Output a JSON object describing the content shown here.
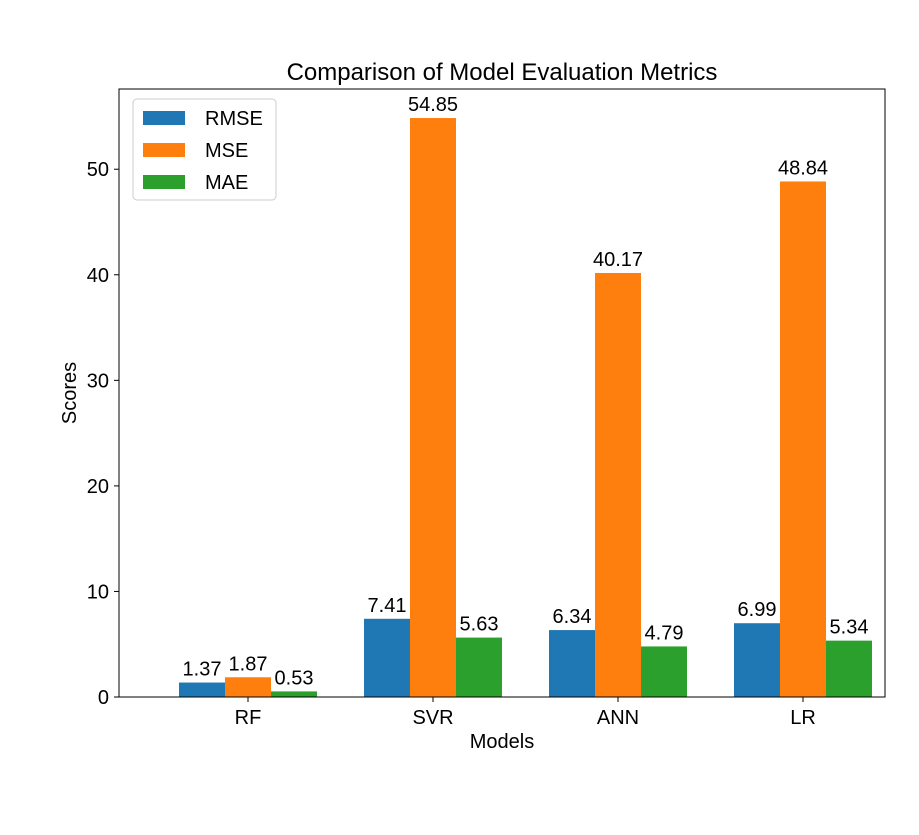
{
  "chart_data": {
    "type": "bar",
    "title": "Comparison of Model Evaluation Metrics",
    "xlabel": "Models",
    "ylabel": "Scores",
    "categories": [
      "RF",
      "SVR",
      "ANN",
      "LR"
    ],
    "series": [
      {
        "name": "RMSE",
        "color": "#1f77b4",
        "values": [
          1.37,
          7.41,
          6.34,
          6.99
        ],
        "labels": [
          "1.37",
          "7.41",
          "6.34",
          "6.99"
        ]
      },
      {
        "name": "MSE",
        "color": "#ff7f0e",
        "values": [
          1.87,
          54.85,
          40.17,
          48.84
        ],
        "labels": [
          "1.87",
          "54.85",
          "40.17",
          "48.84"
        ]
      },
      {
        "name": "MAE",
        "color": "#2ca02c",
        "values": [
          0.53,
          5.63,
          4.79,
          5.34
        ],
        "labels": [
          "0.53",
          "5.63",
          "4.79",
          "5.34"
        ]
      }
    ],
    "yticks": [
      0,
      10,
      20,
      30,
      40,
      50
    ],
    "ylim": [
      0,
      57.6
    ],
    "grid": false,
    "legend_position": "top-left"
  }
}
